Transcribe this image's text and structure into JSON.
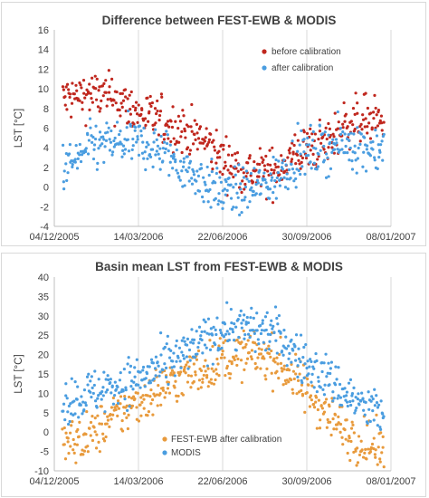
{
  "chart_data": [
    {
      "type": "scatter",
      "title": "Difference between FEST-EWB & MODIS",
      "xlabel": "",
      "ylabel": "LST [°C]",
      "ylim": [
        -4,
        16
      ],
      "yticks": [
        -4,
        -2,
        0,
        2,
        4,
        6,
        8,
        10,
        12,
        14,
        16
      ],
      "xlim": [
        "2005-12-04",
        "2007-01-08"
      ],
      "xticks": [
        "04/12/2005",
        "14/03/2006",
        "22/06/2006",
        "30/09/2006",
        "08/01/2007"
      ],
      "grid": "vertical",
      "legend_position": "top-right",
      "series": [
        {
          "name": "before calibration",
          "color": "#c0271e",
          "x": [
            "2005-12-20",
            "2006-01-15",
            "2006-02-15",
            "2006-03-15",
            "2006-04-15",
            "2006-05-15",
            "2006-06-10",
            "2006-06-20",
            "2006-07-10",
            "2006-08-01",
            "2006-08-20",
            "2006-09-10",
            "2006-10-01",
            "2006-10-25",
            "2006-11-15",
            "2006-12-10",
            "2006-12-28"
          ],
          "y": [
            9,
            9.5,
            9,
            7.5,
            6.5,
            5.5,
            4,
            3,
            2,
            1.5,
            1.5,
            3,
            4,
            4.5,
            6.5,
            7,
            6.5
          ]
        },
        {
          "name": "after calibration",
          "color": "#4a9de0",
          "x": [
            "2005-12-20",
            "2006-01-15",
            "2006-02-15",
            "2006-03-15",
            "2006-04-15",
            "2006-05-15",
            "2006-06-10",
            "2006-06-20",
            "2006-07-10",
            "2006-08-01",
            "2006-08-20",
            "2006-09-10",
            "2006-10-01",
            "2006-10-25",
            "2006-11-15",
            "2006-12-10",
            "2006-12-28"
          ],
          "y": [
            2,
            4,
            4.5,
            4.5,
            3.5,
            1.5,
            0,
            -0.5,
            -0.5,
            0,
            0.5,
            2.5,
            3.5,
            4,
            4.5,
            4,
            4
          ]
        }
      ]
    },
    {
      "type": "scatter",
      "title": "Basin mean LST from FEST-EWB & MODIS",
      "xlabel": "",
      "ylabel": "LST [°C]",
      "ylim": [
        -10,
        40
      ],
      "yticks": [
        -10,
        -5,
        0,
        5,
        10,
        15,
        20,
        25,
        30,
        35,
        40
      ],
      "xlim": [
        "2005-12-04",
        "2007-01-08"
      ],
      "xticks": [
        "04/12/2005",
        "14/03/2006",
        "22/06/2006",
        "30/09/2006",
        "08/01/2007"
      ],
      "grid": "vertical",
      "legend_position": "bottom-right",
      "series": [
        {
          "name": "FEST-EWB after calibration",
          "color": "#e89a3c",
          "x": [
            "2005-12-20",
            "2006-01-15",
            "2006-02-15",
            "2006-03-15",
            "2006-04-15",
            "2006-05-15",
            "2006-06-10",
            "2006-06-25",
            "2006-07-10",
            "2006-08-01",
            "2006-08-20",
            "2006-09-10",
            "2006-10-01",
            "2006-10-25",
            "2006-11-15",
            "2006-12-10",
            "2006-12-28"
          ],
          "y": [
            -3,
            -1,
            4,
            8,
            12,
            15,
            17.5,
            19,
            20,
            20,
            19,
            15,
            10,
            5,
            0,
            -3,
            -5
          ]
        },
        {
          "name": "MODIS",
          "color": "#4a9de0",
          "x": [
            "2005-12-20",
            "2006-01-15",
            "2006-02-15",
            "2006-03-15",
            "2006-04-15",
            "2006-05-15",
            "2006-06-10",
            "2006-06-25",
            "2006-07-10",
            "2006-08-01",
            "2006-08-20",
            "2006-09-10",
            "2006-10-01",
            "2006-10-25",
            "2006-11-15",
            "2006-12-10",
            "2006-12-28"
          ],
          "y": [
            8,
            10,
            12,
            14,
            17,
            21,
            25,
            27,
            27,
            26.5,
            26,
            22,
            17,
            14,
            10,
            6,
            5
          ]
        }
      ]
    }
  ]
}
